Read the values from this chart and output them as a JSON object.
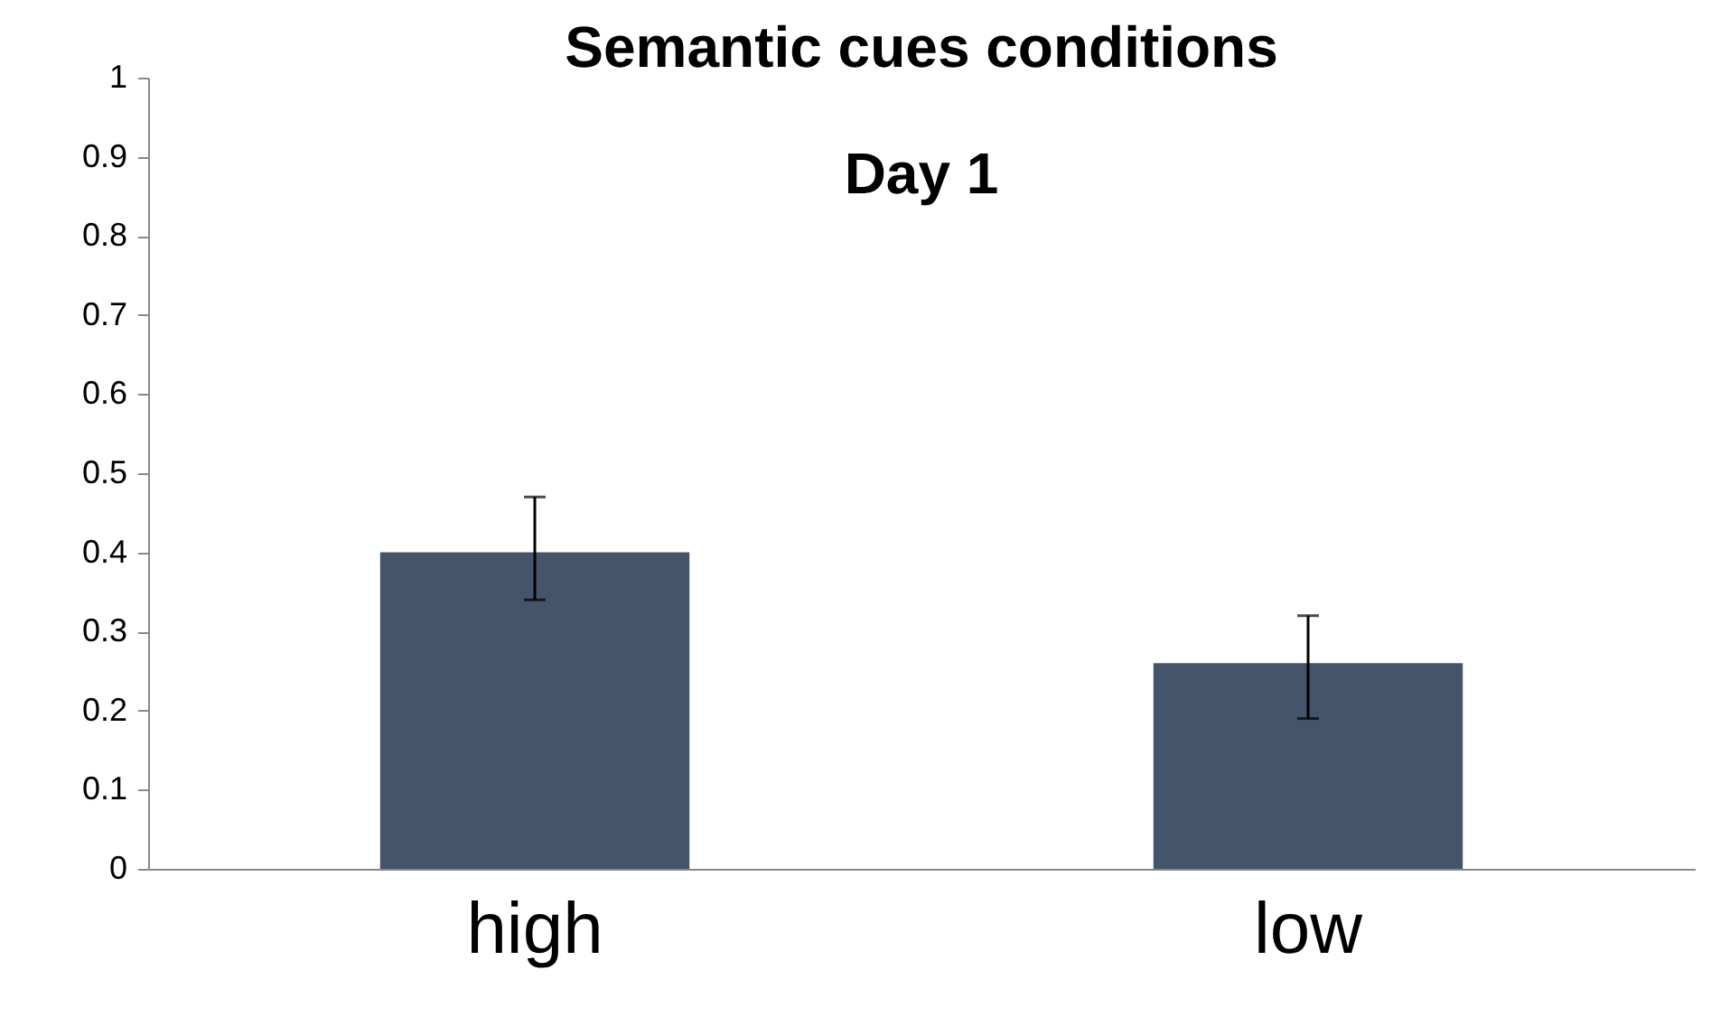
{
  "chart_data": {
    "type": "bar",
    "title": "Semantic cues conditions",
    "subtitle": "Day 1",
    "categories": [
      "high",
      "low"
    ],
    "values": [
      0.4,
      0.26
    ],
    "errors": [
      [
        0.34,
        0.47
      ],
      [
        0.19,
        0.32
      ]
    ],
    "color": "#44546a",
    "ylim": [
      0,
      1
    ],
    "yticks": [
      0,
      0.1,
      0.2,
      0.3,
      0.4,
      0.5,
      0.6,
      0.7,
      0.8,
      0.9,
      1
    ],
    "grid": false
  }
}
